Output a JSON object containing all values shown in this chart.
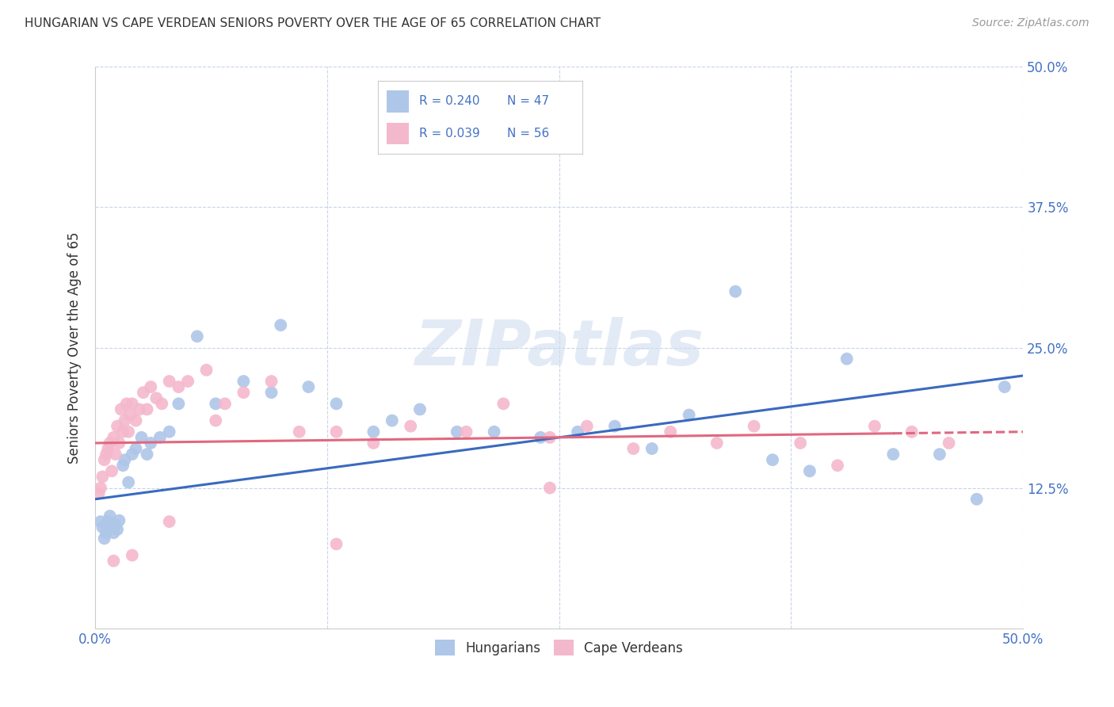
{
  "title": "HUNGARIAN VS CAPE VERDEAN SENIORS POVERTY OVER THE AGE OF 65 CORRELATION CHART",
  "source": "Source: ZipAtlas.com",
  "ylabel": "Seniors Poverty Over the Age of 65",
  "xlim": [
    0.0,
    0.5
  ],
  "ylim": [
    0.0,
    0.5
  ],
  "hungarian_R": "0.240",
  "hungarian_N": "47",
  "capeverdean_R": "0.039",
  "capeverdean_N": "56",
  "hungarian_color": "#aec6e8",
  "capeverdean_color": "#f4b8cc",
  "hungarian_line_color": "#3a6abf",
  "capeverdean_line_color": "#e06880",
  "watermark": "ZIPatlas",
  "background_color": "#ffffff",
  "grid_color": "#c8d4e8",
  "hun_trend_x0": 0.0,
  "hun_trend_y0": 0.115,
  "hun_trend_x1": 0.5,
  "hun_trend_y1": 0.225,
  "cv_trend_x0": 0.0,
  "cv_trend_y0": 0.165,
  "cv_trend_x1": 0.5,
  "cv_trend_y1": 0.175,
  "hungarian_x": [
    0.003,
    0.004,
    0.005,
    0.006,
    0.007,
    0.008,
    0.009,
    0.01,
    0.011,
    0.012,
    0.013,
    0.015,
    0.016,
    0.018,
    0.02,
    0.022,
    0.025,
    0.028,
    0.03,
    0.035,
    0.04,
    0.045,
    0.055,
    0.065,
    0.08,
    0.095,
    0.1,
    0.115,
    0.13,
    0.15,
    0.16,
    0.175,
    0.195,
    0.215,
    0.24,
    0.26,
    0.28,
    0.3,
    0.32,
    0.345,
    0.365,
    0.385,
    0.405,
    0.43,
    0.455,
    0.475,
    0.49
  ],
  "hungarian_y": [
    0.095,
    0.09,
    0.08,
    0.085,
    0.095,
    0.1,
    0.09,
    0.085,
    0.092,
    0.088,
    0.096,
    0.145,
    0.15,
    0.13,
    0.155,
    0.16,
    0.17,
    0.155,
    0.165,
    0.17,
    0.175,
    0.2,
    0.26,
    0.2,
    0.22,
    0.21,
    0.27,
    0.215,
    0.2,
    0.175,
    0.185,
    0.195,
    0.175,
    0.175,
    0.17,
    0.175,
    0.18,
    0.16,
    0.19,
    0.3,
    0.15,
    0.14,
    0.24,
    0.155,
    0.155,
    0.115,
    0.215
  ],
  "capeverdean_x": [
    0.002,
    0.003,
    0.004,
    0.005,
    0.006,
    0.007,
    0.008,
    0.009,
    0.01,
    0.011,
    0.012,
    0.013,
    0.014,
    0.015,
    0.016,
    0.017,
    0.018,
    0.019,
    0.02,
    0.022,
    0.024,
    0.026,
    0.028,
    0.03,
    0.033,
    0.036,
    0.04,
    0.045,
    0.05,
    0.06,
    0.07,
    0.08,
    0.095,
    0.11,
    0.13,
    0.15,
    0.17,
    0.2,
    0.22,
    0.245,
    0.265,
    0.29,
    0.31,
    0.335,
    0.355,
    0.38,
    0.4,
    0.42,
    0.44,
    0.46,
    0.245,
    0.13,
    0.065,
    0.04,
    0.02,
    0.01
  ],
  "capeverdean_y": [
    0.12,
    0.125,
    0.135,
    0.15,
    0.155,
    0.16,
    0.165,
    0.14,
    0.17,
    0.155,
    0.18,
    0.165,
    0.195,
    0.175,
    0.185,
    0.2,
    0.175,
    0.19,
    0.2,
    0.185,
    0.195,
    0.21,
    0.195,
    0.215,
    0.205,
    0.2,
    0.22,
    0.215,
    0.22,
    0.23,
    0.2,
    0.21,
    0.22,
    0.175,
    0.175,
    0.165,
    0.18,
    0.175,
    0.2,
    0.17,
    0.18,
    0.16,
    0.175,
    0.165,
    0.18,
    0.165,
    0.145,
    0.18,
    0.175,
    0.165,
    0.125,
    0.075,
    0.185,
    0.095,
    0.065,
    0.06
  ]
}
